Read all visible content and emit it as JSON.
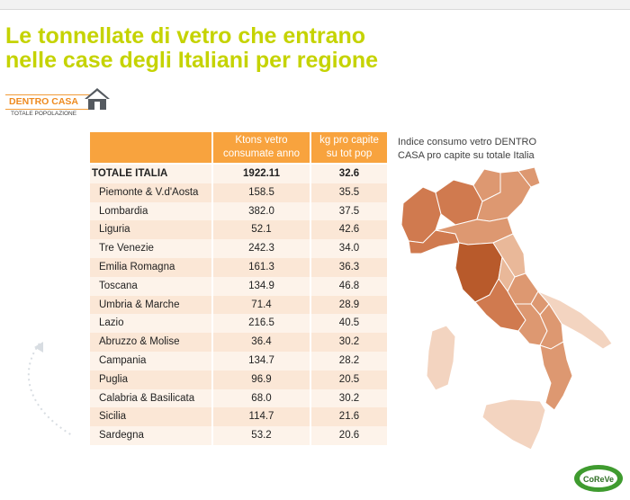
{
  "title": {
    "line1": "Le tonnellate di vetro che entrano",
    "line2": "nelle case degli Italiani per regione"
  },
  "badge": {
    "label": "DENTRO CASA",
    "sub": "TOTALE POPOLAZIONE"
  },
  "table": {
    "headers": {
      "col1_line1": "Ktons vetro",
      "col1_line2": "consumate anno",
      "col2_line1": "kg pro capite",
      "col2_line2": "su tot pop"
    },
    "total": {
      "name": "TOTALE ITALIA",
      "ktons": "1922.11",
      "kg": "32.6"
    },
    "rows": [
      {
        "name": "Piemonte & V.d'Aosta",
        "ktons": "158.5",
        "kg": "35.5"
      },
      {
        "name": "Lombardia",
        "ktons": "382.0",
        "kg": "37.5"
      },
      {
        "name": "Liguria",
        "ktons": "52.1",
        "kg": "42.6"
      },
      {
        "name": "Tre Venezie",
        "ktons": "242.3",
        "kg": "34.0"
      },
      {
        "name": "Emilia Romagna",
        "ktons": "161.3",
        "kg": "36.3"
      },
      {
        "name": "Toscana",
        "ktons": "134.9",
        "kg": "46.8"
      },
      {
        "name": "Umbria & Marche",
        "ktons": "71.4",
        "kg": "28.9"
      },
      {
        "name": "Lazio",
        "ktons": "216.5",
        "kg": "40.5"
      },
      {
        "name": "Abruzzo & Molise",
        "ktons": "36.4",
        "kg": "30.2"
      },
      {
        "name": "Campania",
        "ktons": "134.7",
        "kg": "28.2"
      },
      {
        "name": "Puglia",
        "ktons": "96.9",
        "kg": "20.5"
      },
      {
        "name": "Calabria & Basilicata",
        "ktons": "68.0",
        "kg": "30.2"
      },
      {
        "name": "Sicilia",
        "ktons": "114.7",
        "kg": "21.6"
      },
      {
        "name": "Sardegna",
        "ktons": "53.2",
        "kg": "20.6"
      }
    ]
  },
  "map": {
    "caption_line1": "Indice consumo vetro DENTRO",
    "caption_line2": "CASA pro capite su totale Italia",
    "colors": {
      "very_high": "#b85a2b",
      "high": "#d07a4f",
      "mid": "#dd9871",
      "low": "#e9b899",
      "very_low": "#f3d4c0"
    }
  },
  "logo": {
    "text": "CoReVe"
  }
}
